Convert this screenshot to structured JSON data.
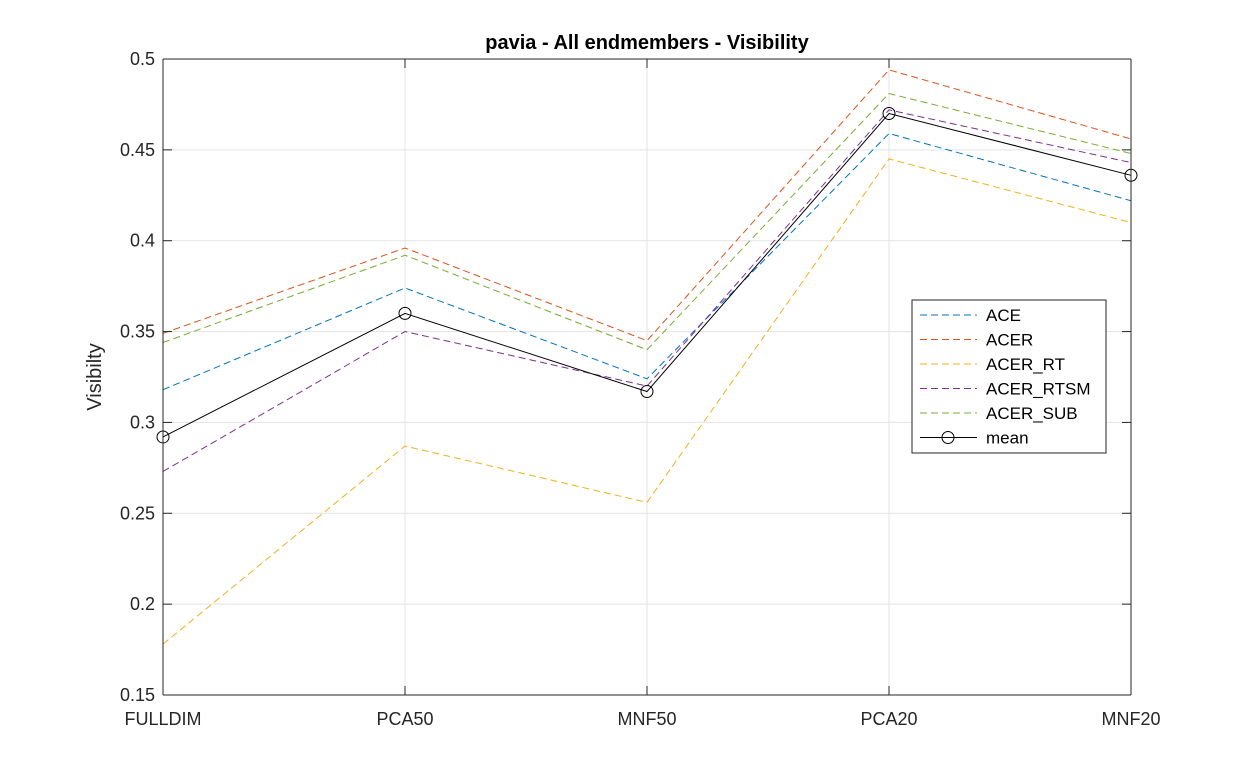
{
  "chart_data": {
    "type": "line",
    "title": "pavia - All endmembers - Visibility",
    "xlabel": "",
    "ylabel": "Visibilty",
    "categories": [
      "FULLDIM",
      "PCA50",
      "MNF50",
      "PCA20",
      "MNF20"
    ],
    "ylim": [
      0.15,
      0.5
    ],
    "yticks": [
      0.15,
      0.2,
      0.25,
      0.3,
      0.35,
      0.4,
      0.45,
      0.5
    ],
    "grid": true,
    "legend_position": "right",
    "series": [
      {
        "name": "ACE",
        "values": [
          0.318,
          0.374,
          0.324,
          0.459,
          0.422
        ],
        "color": "#0072BD",
        "style": "dashed"
      },
      {
        "name": "ACER",
        "values": [
          0.349,
          0.396,
          0.345,
          0.494,
          0.456
        ],
        "color": "#D95319",
        "style": "dashed"
      },
      {
        "name": "ACER_RT",
        "values": [
          0.178,
          0.287,
          0.256,
          0.445,
          0.41
        ],
        "color": "#EDB120",
        "style": "dashed"
      },
      {
        "name": "ACER_RTSM",
        "values": [
          0.273,
          0.35,
          0.32,
          0.472,
          0.443
        ],
        "color": "#7E2F8E",
        "style": "dashed"
      },
      {
        "name": "ACER_SUB",
        "values": [
          0.344,
          0.392,
          0.34,
          0.481,
          0.448
        ],
        "color": "#77AC30",
        "style": "dashed"
      },
      {
        "name": "mean",
        "values": [
          0.292,
          0.36,
          0.317,
          0.47,
          0.436
        ],
        "color": "#000000",
        "style": "solid",
        "marker": "circle"
      }
    ]
  }
}
